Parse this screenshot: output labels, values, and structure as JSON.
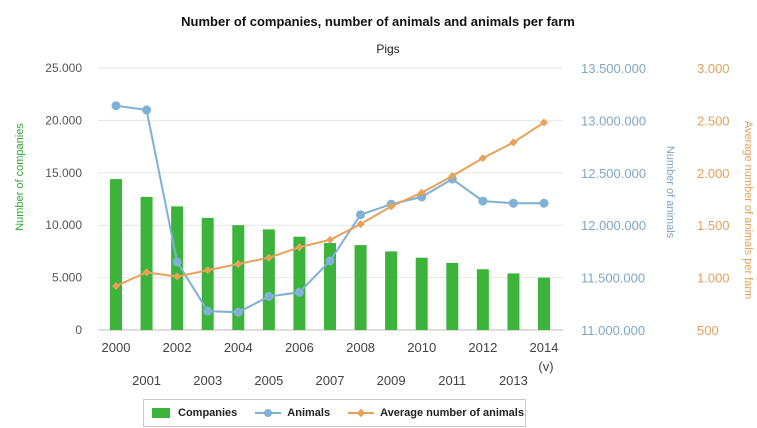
{
  "chart_data": {
    "type": "bar+line",
    "title": "Number of companies, number of animals and animals per farm",
    "subtitle": "Pigs",
    "x_note": "(v)",
    "categories": [
      "2000",
      "2001",
      "2002",
      "2003",
      "2004",
      "2005",
      "2006",
      "2007",
      "2008",
      "2009",
      "2010",
      "2011",
      "2012",
      "2013",
      "2014"
    ],
    "axes": {
      "left": {
        "label": "Number of companies",
        "range": [
          0,
          25000
        ],
        "ticks": [
          "0",
          "5.000",
          "10.000",
          "15.000",
          "20.000",
          "25.000"
        ],
        "color": "#2fa82f"
      },
      "middle": {
        "label": "Number of animals",
        "range": [
          11000000,
          13500000
        ],
        "ticks": [
          "11.000.000",
          "11.500.000",
          "12.000.000",
          "12.500.000",
          "13.000.000",
          "13.500.000"
        ],
        "color": "#7fa7c4"
      },
      "right": {
        "label": "Average number of animals per farm",
        "range": [
          500,
          3000
        ],
        "ticks": [
          "500",
          "1.000",
          "1.500",
          "2.000",
          "2.500",
          "3.000"
        ],
        "color": "#e3a05a"
      }
    },
    "grid": true,
    "series": [
      {
        "name": "Companies",
        "kind": "bar",
        "axis": "left",
        "color": "#3cb43c",
        "values": [
          14400,
          12700,
          11800,
          10700,
          10000,
          9600,
          8900,
          8300,
          8100,
          7500,
          6900,
          6400,
          5800,
          5400,
          5000
        ]
      },
      {
        "name": "Animals",
        "kind": "line",
        "axis": "middle",
        "color": "#7fb0d6",
        "marker": "circle",
        "values": [
          13140000,
          13100000,
          11650000,
          11180000,
          11170000,
          11320000,
          11360000,
          11660000,
          12100000,
          12200000,
          12270000,
          12440000,
          12230000,
          12210000,
          12210000
        ]
      },
      {
        "name": "Average number of animals",
        "kind": "line",
        "axis": "right",
        "color": "#e8a15a",
        "marker": "diamond",
        "values": [
          920,
          1050,
          1010,
          1070,
          1130,
          1190,
          1290,
          1360,
          1510,
          1680,
          1810,
          1970,
          2140,
          2290,
          2480
        ]
      }
    ],
    "legend": {
      "position": "bottom",
      "items": [
        "Companies",
        "Animals",
        "Average number of animals"
      ]
    }
  }
}
